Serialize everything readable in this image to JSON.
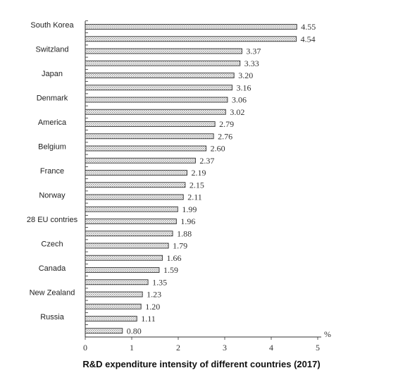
{
  "chart_data": {
    "type": "bar",
    "orientation": "horizontal",
    "title": "R&D expenditure intensity of different countries (2017)",
    "unit": "%",
    "xlim": [
      0,
      5
    ],
    "xticks": [
      "0",
      "1",
      "2",
      "3",
      "4",
      "5"
    ],
    "category_labels": [
      "South Korea",
      "Switzland",
      "Japan",
      "Denmark",
      "America",
      "Belgium",
      "France",
      "Norway",
      "28 EU contries",
      "Czech",
      "Canada",
      "New Zealand",
      "Russia"
    ],
    "value_labels": [
      "4.55",
      "4.54",
      "3.37",
      "3.33",
      "3.20",
      "3.16",
      "3.06",
      "3.02",
      "2.79",
      "2.76",
      "2.60",
      "2.37",
      "2.19",
      "2.15",
      "2.11",
      "1.99",
      "1.96",
      "1.88",
      "1.79",
      "1.66",
      "1.59",
      "1.35",
      "1.23",
      "1.20",
      "1.11",
      "0.80"
    ],
    "values": [
      4.55,
      4.54,
      3.37,
      3.33,
      3.2,
      3.16,
      3.06,
      3.02,
      2.79,
      2.76,
      2.6,
      2.37,
      2.19,
      2.15,
      2.11,
      1.99,
      1.96,
      1.88,
      1.79,
      1.66,
      1.59,
      1.35,
      1.23,
      1.2,
      1.11,
      0.8
    ],
    "grid": false,
    "bar_pattern": "hatched"
  }
}
